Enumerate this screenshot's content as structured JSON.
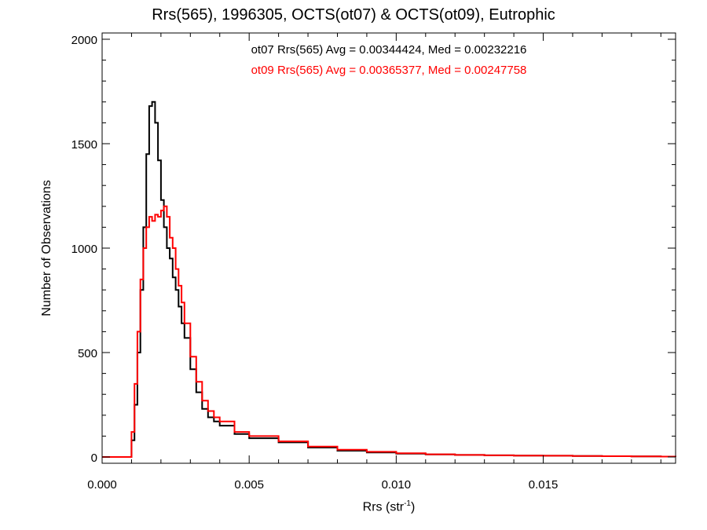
{
  "chart_data": {
    "type": "line",
    "title": "Rrs(565), 1996305, OCTS(ot07) & OCTS(ot09), Eutrophic",
    "xlabel": "Rrs (str",
    "xlabel_sup": "-1",
    "xlabel_end": ")",
    "ylabel": "Number of Observations",
    "xlim": [
      0.0,
      0.0195
    ],
    "ylim": [
      -30,
      2030
    ],
    "xticks": [
      0.0,
      0.005,
      0.01,
      0.015
    ],
    "xtick_labels": [
      "0.000",
      "0.005",
      "0.010",
      "0.015"
    ],
    "yticks": [
      0,
      500,
      1000,
      1500,
      2000
    ],
    "ytick_labels": [
      "0",
      "500",
      "1000",
      "1500",
      "2000"
    ],
    "grid": false,
    "legend": [
      {
        "text": "ot07 Rrs(565) Avg = 0.00344424, Med = 0.00232216",
        "color": "#000000"
      },
      {
        "text": "ot09 Rrs(565) Avg = 0.00365377, Med = 0.00247758",
        "color": "#ff0000"
      }
    ],
    "series": [
      {
        "name": "ot07",
        "color": "#000000",
        "x": [
          0.0,
          0.0009,
          0.001,
          0.0011,
          0.0012,
          0.0013,
          0.0014,
          0.0015,
          0.0016,
          0.0017,
          0.0018,
          0.0019,
          0.002,
          0.0021,
          0.0022,
          0.0023,
          0.0024,
          0.0025,
          0.0026,
          0.0027,
          0.0028,
          0.003,
          0.0032,
          0.0034,
          0.0036,
          0.0038,
          0.004,
          0.0045,
          0.005,
          0.006,
          0.007,
          0.008,
          0.009,
          0.01,
          0.011,
          0.012,
          0.013,
          0.014,
          0.015,
          0.016,
          0.017,
          0.018,
          0.019,
          0.0195
        ],
        "y": [
          0,
          0,
          80,
          250,
          500,
          800,
          1100,
          1450,
          1680,
          1700,
          1600,
          1420,
          1230,
          1100,
          1000,
          950,
          860,
          800,
          720,
          640,
          570,
          420,
          310,
          230,
          190,
          170,
          150,
          110,
          90,
          70,
          45,
          30,
          22,
          16,
          12,
          10,
          8,
          7,
          6,
          5,
          4,
          3,
          2,
          1
        ]
      },
      {
        "name": "ot09",
        "color": "#ff0000",
        "x": [
          0.0,
          0.0009,
          0.001,
          0.0011,
          0.0012,
          0.0013,
          0.0014,
          0.0015,
          0.0016,
          0.0017,
          0.0018,
          0.0019,
          0.002,
          0.0021,
          0.0022,
          0.0023,
          0.0024,
          0.0025,
          0.0026,
          0.0027,
          0.0028,
          0.003,
          0.0032,
          0.0034,
          0.0036,
          0.0038,
          0.004,
          0.0045,
          0.005,
          0.006,
          0.007,
          0.008,
          0.009,
          0.01,
          0.011,
          0.012,
          0.013,
          0.014,
          0.015,
          0.016,
          0.017,
          0.018,
          0.019,
          0.0195
        ],
        "y": [
          0,
          0,
          120,
          350,
          600,
          850,
          1000,
          1100,
          1150,
          1130,
          1160,
          1150,
          1180,
          1200,
          1150,
          1050,
          1000,
          900,
          820,
          740,
          640,
          480,
          360,
          270,
          220,
          190,
          170,
          120,
          100,
          75,
          50,
          35,
          25,
          18,
          13,
          10,
          8,
          7,
          6,
          5,
          4,
          3,
          2,
          1
        ]
      }
    ]
  }
}
